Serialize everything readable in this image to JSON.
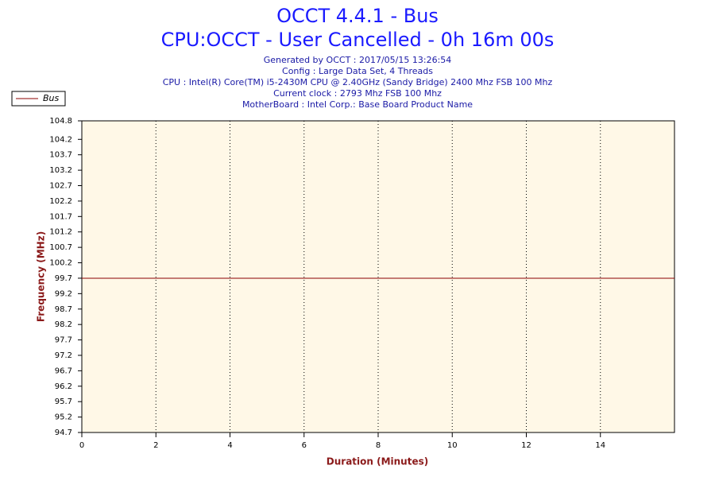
{
  "chart_data": {
    "type": "line",
    "title": "OCCT 4.4.1 - Bus",
    "subtitle": "CPU:OCCT - User Cancelled - 0h 16m 00s",
    "info": [
      "Generated by OCCT : 2017/05/15 13:26:54",
      "Config : Large Data Set, 4 Threads",
      "CPU : Intel(R) Core(TM) i5-2430M CPU @ 2.40GHz (Sandy Bridge) 2400 Mhz FSB 100 Mhz",
      "Current clock : 2793 Mhz FSB 100 Mhz",
      "MotherBoard : Intel Corp.: Base Board Product Name"
    ],
    "x_label": "Duration (Minutes)",
    "y_label": "Frequency (MHz)",
    "x": [
      0,
      16
    ],
    "series": [
      {
        "name": "Bus",
        "color": "#8b0000",
        "values": [
          99.7,
          99.7
        ]
      }
    ],
    "xlim": [
      0,
      16
    ],
    "xticks": [
      0,
      2,
      4,
      6,
      8,
      10,
      12,
      14
    ],
    "ylim": [
      94.7,
      104.8
    ],
    "yticks": [
      94.7,
      95.2,
      95.7,
      96.2,
      96.7,
      97.2,
      97.7,
      98.2,
      98.7,
      99.2,
      99.7,
      100.2,
      100.7,
      101.2,
      101.7,
      102.2,
      102.7,
      103.2,
      103.7,
      104.2,
      104.8
    ],
    "grid": true,
    "legend": "top-left"
  }
}
